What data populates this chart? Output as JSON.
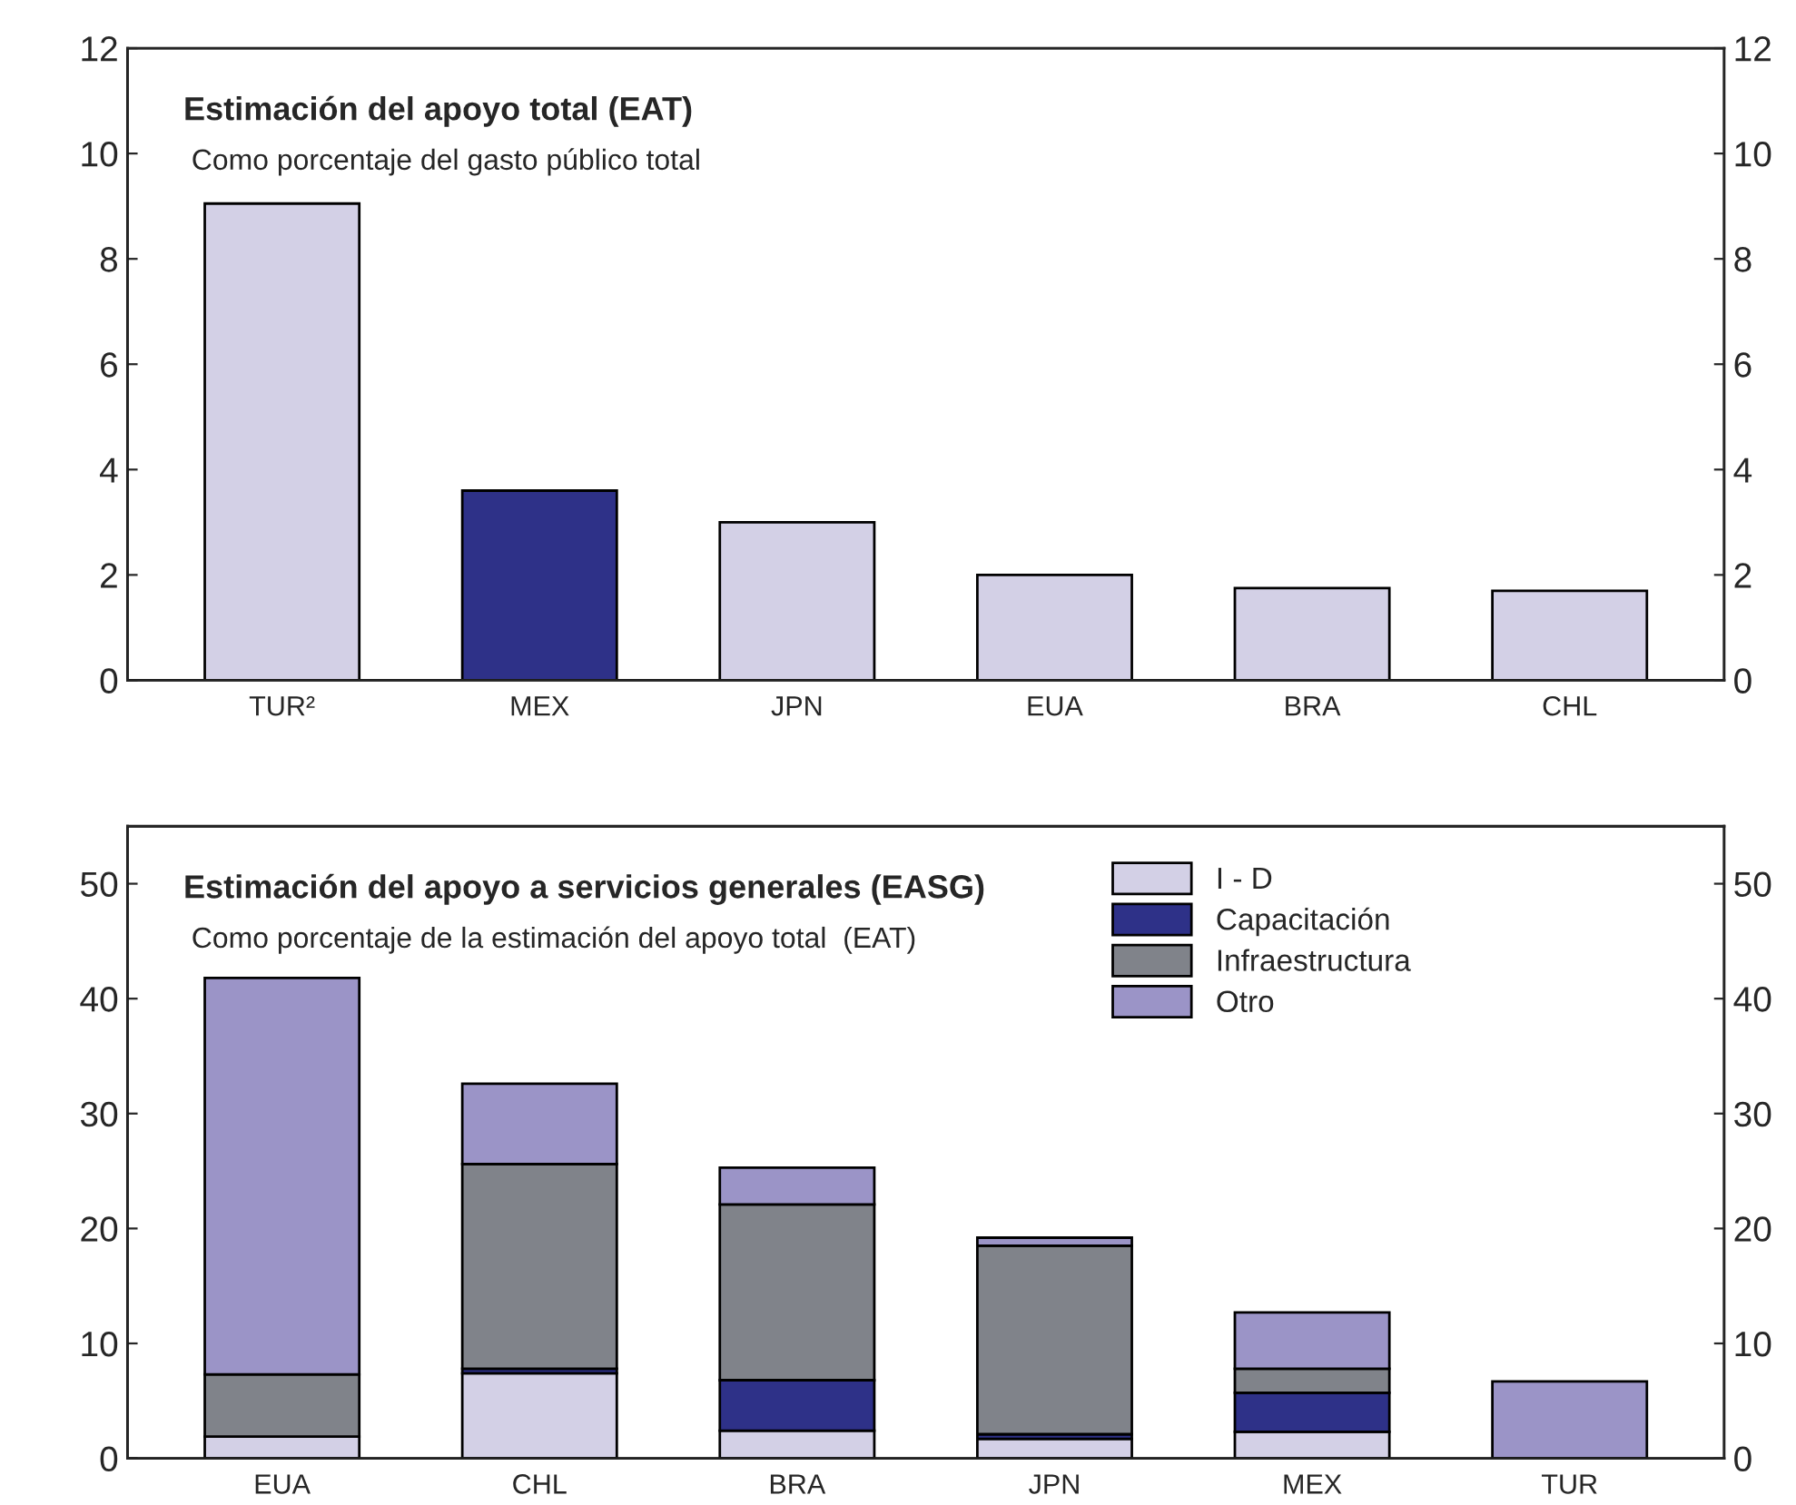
{
  "chart_data": [
    {
      "type": "bar",
      "title": "Estimación del apoyo total (EAT)",
      "subtitle": "Como porcentaje del gasto público total",
      "categories": [
        "TUR²",
        "MEX",
        "JPN",
        "EUA",
        "BRA",
        "CHL"
      ],
      "values": [
        9.05,
        3.6,
        3.0,
        2.0,
        1.75,
        1.7
      ],
      "colors": [
        "#d3d0e6",
        "#2e3188",
        "#d3d0e6",
        "#d3d0e6",
        "#d3d0e6",
        "#d3d0e6"
      ],
      "ylim": [
        0,
        12
      ],
      "yticks": [
        0,
        2,
        4,
        6,
        8,
        10,
        12
      ],
      "y2lim": [
        0,
        12
      ],
      "y2ticks": [
        0,
        2,
        4,
        6,
        8,
        10,
        12
      ],
      "grid": false,
      "legend": false
    },
    {
      "type": "bar",
      "stacked": true,
      "title": "Estimación del apoyo a servicios generales (EASG)",
      "subtitle": "Como porcentaje de la estimación del apoyo total  (EAT)",
      "categories": [
        "EUA",
        "CHL",
        "BRA",
        "JPN",
        "MEX",
        "TUR"
      ],
      "series": [
        {
          "name": "I - D",
          "color": "#d3d0e6",
          "values": [
            1.9,
            7.4,
            2.4,
            1.7,
            2.3,
            0
          ]
        },
        {
          "name": "Capacitación",
          "color": "#2e3188",
          "values": [
            0,
            0.4,
            4.4,
            0.4,
            3.4,
            null
          ]
        },
        {
          "name": "Infraestructura",
          "color": "#80838a",
          "values": [
            5.4,
            17.8,
            15.3,
            16.4,
            2.1,
            0
          ]
        },
        {
          "name": "Otro",
          "color": "#9b94c7",
          "values": [
            34.5,
            7.0,
            3.2,
            0.7,
            4.9,
            6.7
          ]
        }
      ],
      "ylim": [
        0,
        55
      ],
      "yticks": [
        0,
        10,
        20,
        30,
        40,
        50
      ],
      "y2lim": [
        0,
        55
      ],
      "y2ticks": [
        0,
        10,
        20,
        30,
        40,
        50
      ],
      "grid": false,
      "legend": "top"
    }
  ]
}
